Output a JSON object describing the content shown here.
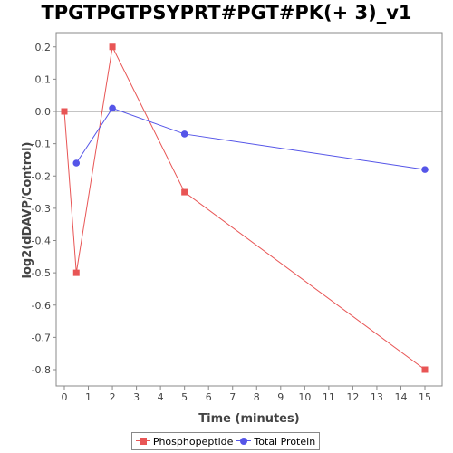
{
  "chart_data": {
    "type": "line",
    "title": "TPGTPGTPSYPRT#PGT#PK(+ 3)_v1",
    "xlabel": "Time (minutes)",
    "ylabel": "log2(dDAVP/Control)",
    "xlim": [
      0,
      16
    ],
    "ylim": [
      -0.85,
      0.24
    ],
    "x_ticks": [
      0,
      1,
      2,
      3,
      4,
      5,
      6,
      7,
      8,
      9,
      10,
      11,
      12,
      13,
      14,
      15
    ],
    "y_ticks": [
      0.2,
      0.1,
      0.0,
      -0.1,
      -0.2,
      -0.3,
      -0.4,
      -0.5,
      -0.6,
      -0.7,
      -0.8
    ],
    "y_tick_labels": [
      "0.2",
      "0.1",
      "0.0",
      "-0.1",
      "-0.2",
      "-0.3",
      "-0.4",
      "-0.5",
      "-0.6",
      "-0.7",
      "-0.8"
    ],
    "zero_line": true,
    "grid": false,
    "legend_position": "bottom",
    "series": [
      {
        "name": "Phosphopeptide",
        "color": "#e85555",
        "marker": "square",
        "x": [
          0,
          0.5,
          2,
          5,
          15
        ],
        "y": [
          0.0,
          -0.5,
          0.2,
          -0.25,
          -0.8
        ]
      },
      {
        "name": "Total Protein",
        "color": "#5555e8",
        "marker": "circle",
        "x": [
          0.5,
          2,
          5,
          15
        ],
        "y": [
          -0.16,
          0.01,
          -0.07,
          -0.18
        ]
      }
    ]
  }
}
